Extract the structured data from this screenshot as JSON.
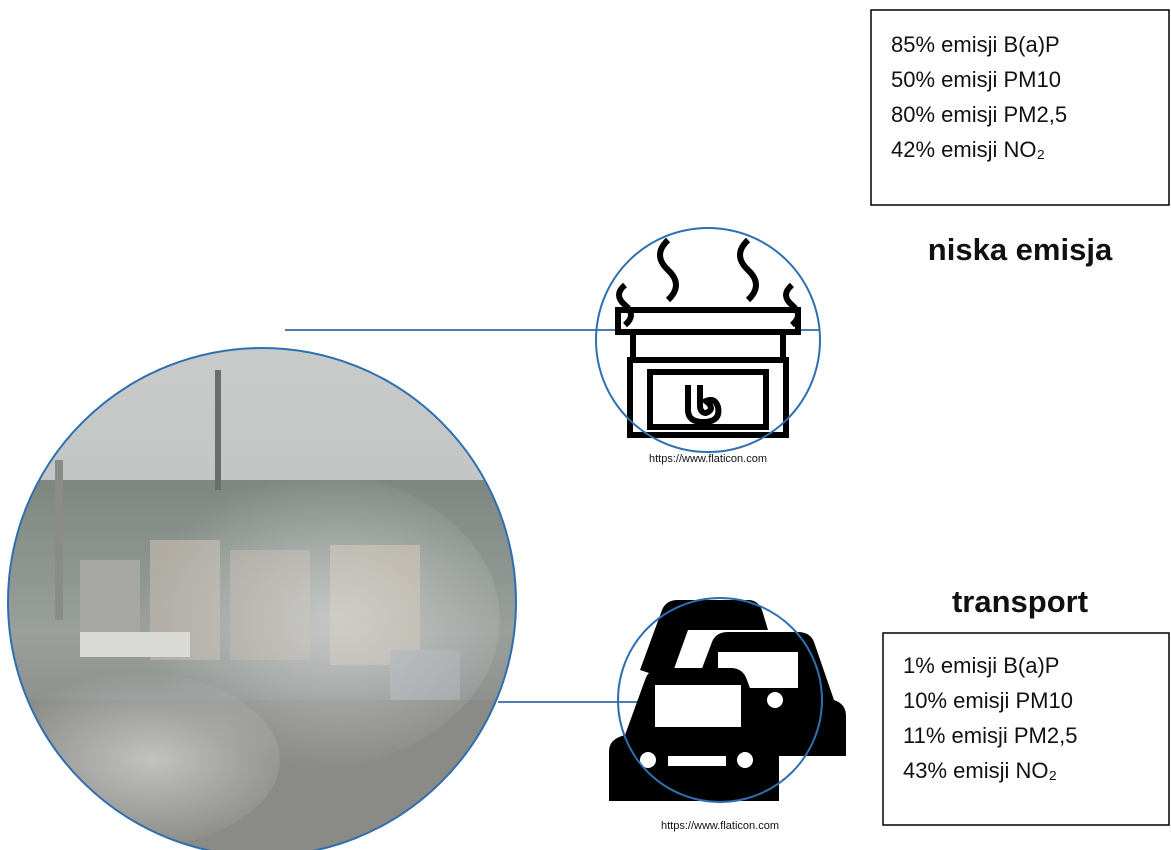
{
  "sources": [
    {
      "title": "niska emisja",
      "stats": [
        "85% emisji B(a)P",
        "50% emisji PM10",
        "80% emisji PM2,5",
        "42% emisji NO₂"
      ],
      "credit": "https://www.flaticon.com"
    },
    {
      "title": "transport",
      "stats": [
        "1% emisji B(a)P",
        "10% emisji PM10",
        "11% emisji PM2,5",
        "43% emisji NO₂"
      ],
      "credit": "https://www.flaticon.com"
    }
  ]
}
